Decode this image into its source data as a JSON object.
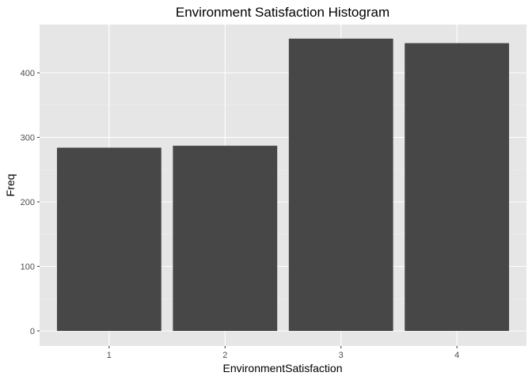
{
  "chart_data": {
    "type": "bar",
    "title": "Environment Satisfaction  Histogram",
    "xlabel": "EnvironmentSatisfaction",
    "ylabel": "Freq",
    "categories": [
      "1",
      "2",
      "3",
      "4"
    ],
    "values": [
      284,
      287,
      453,
      446
    ],
    "ylim": [
      0,
      470
    ],
    "yticks": [
      0,
      100,
      200,
      300,
      400
    ],
    "grid": true,
    "colors": {
      "bar": "#474747",
      "panel": "#e6e6e6",
      "grid_major": "#ffffff",
      "grid_minor": "#f1f1f1",
      "tick_text": "#4d4d4d"
    }
  }
}
